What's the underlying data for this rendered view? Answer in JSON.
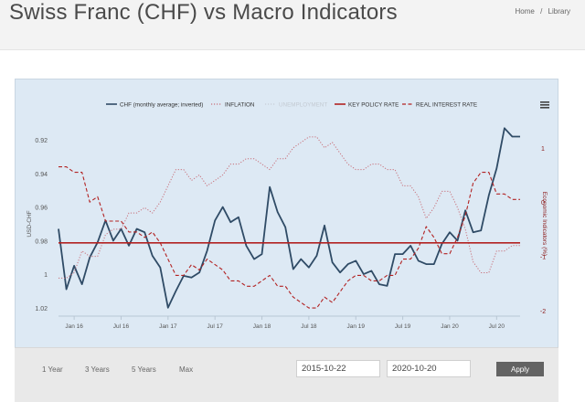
{
  "page": {
    "title": "Swiss Franc (CHF) vs Macro Indicators"
  },
  "breadcrumb": {
    "home": "Home",
    "separator": "/",
    "current": "Library"
  },
  "controls": {
    "periods": [
      "1 Year",
      "3 Years",
      "5 Years",
      "Max"
    ],
    "start_date": "2015-10-22",
    "end_date": "2020-10-20",
    "apply_label": "Apply"
  },
  "chart_data": {
    "type": "line",
    "title": "",
    "xlabel": "",
    "ylabel": "USD-CHF",
    "y2label": "Economic Indicators (%)",
    "x_ticks": [
      "Jan 16",
      "Jul 16",
      "Jan 17",
      "Jul 17",
      "Jan 18",
      "Jul 18",
      "Jan 19",
      "Jul 19",
      "Jan 20",
      "Jul 20"
    ],
    "y_ticks": [
      "0.92",
      "0.94",
      "0.96",
      "0.98",
      "1",
      "1.02"
    ],
    "y2_ticks": [
      "1",
      "0",
      "-1",
      "-2"
    ],
    "ylim": [
      0.915,
      1.025
    ],
    "y_inverted": true,
    "y2lim": [
      -2.1,
      1.3
    ],
    "x_range": [
      "2015-11",
      "2020-10"
    ],
    "legend_position": "top",
    "legend": [
      "CHF (monthly average; inverted)",
      "INFLATION",
      "UNEMPLOYMENT",
      "KEY POLICY RATE",
      "REAL INTEREST RATE"
    ],
    "menu_icon": "hamburger-menu-icon",
    "series": [
      {
        "name": "CHF (monthly average; inverted)",
        "axis": "left",
        "color": "#2f4b66",
        "style": "solid",
        "points": [
          [
            "2015-11",
            0.973
          ],
          [
            "2015-12",
            1.009
          ],
          [
            "2016-01",
            0.995
          ],
          [
            "2016-02",
            1.006
          ],
          [
            "2016-03",
            0.99
          ],
          [
            "2016-04",
            0.981
          ],
          [
            "2016-05",
            0.968
          ],
          [
            "2016-06",
            0.98
          ],
          [
            "2016-07",
            0.973
          ],
          [
            "2016-08",
            0.983
          ],
          [
            "2016-09",
            0.973
          ],
          [
            "2016-10",
            0.975
          ],
          [
            "2016-11",
            0.989
          ],
          [
            "2016-12",
            0.996
          ],
          [
            "2017-01",
            1.02
          ],
          [
            "2017-02",
            1.01
          ],
          [
            "2017-03",
            1.001
          ],
          [
            "2017-04",
            1.002
          ],
          [
            "2017-05",
            0.999
          ],
          [
            "2017-06",
            0.986
          ],
          [
            "2017-07",
            0.968
          ],
          [
            "2017-08",
            0.96
          ],
          [
            "2017-09",
            0.969
          ],
          [
            "2017-10",
            0.966
          ],
          [
            "2017-11",
            0.983
          ],
          [
            "2017-12",
            0.991
          ],
          [
            "2018-01",
            0.988
          ],
          [
            "2018-02",
            0.948
          ],
          [
            "2018-03",
            0.963
          ],
          [
            "2018-04",
            0.972
          ],
          [
            "2018-05",
            0.997
          ],
          [
            "2018-06",
            0.991
          ],
          [
            "2018-07",
            0.996
          ],
          [
            "2018-08",
            0.989
          ],
          [
            "2018-09",
            0.971
          ],
          [
            "2018-10",
            0.993
          ],
          [
            "2018-11",
            0.999
          ],
          [
            "2018-12",
            0.994
          ],
          [
            "2019-01",
            0.992
          ],
          [
            "2019-02",
            1.0
          ],
          [
            "2019-03",
            0.998
          ],
          [
            "2019-04",
            1.006
          ],
          [
            "2019-05",
            1.007
          ],
          [
            "2019-06",
            0.988
          ],
          [
            "2019-07",
            0.988
          ],
          [
            "2019-08",
            0.983
          ],
          [
            "2019-09",
            0.992
          ],
          [
            "2019-10",
            0.994
          ],
          [
            "2019-11",
            0.994
          ],
          [
            "2019-12",
            0.982
          ],
          [
            "2020-01",
            0.975
          ],
          [
            "2020-02",
            0.98
          ],
          [
            "2020-03",
            0.962
          ],
          [
            "2020-04",
            0.975
          ],
          [
            "2020-05",
            0.974
          ],
          [
            "2020-06",
            0.953
          ],
          [
            "2020-07",
            0.937
          ],
          [
            "2020-08",
            0.913
          ],
          [
            "2020-09",
            0.918
          ],
          [
            "2020-10",
            0.918
          ]
        ]
      },
      {
        "name": "INFLATION",
        "axis": "right",
        "color": "#c8707a",
        "style": "dotted",
        "points": [
          [
            "2015-11",
            -1.4
          ],
          [
            "2015-12",
            -1.4
          ],
          [
            "2016-01",
            -1.3
          ],
          [
            "2016-02",
            -0.9
          ],
          [
            "2016-03",
            -1.0
          ],
          [
            "2016-04",
            -1.0
          ],
          [
            "2016-05",
            -0.6
          ],
          [
            "2016-06",
            -0.5
          ],
          [
            "2016-07",
            -0.5
          ],
          [
            "2016-08",
            -0.2
          ],
          [
            "2016-09",
            -0.2
          ],
          [
            "2016-10",
            -0.1
          ],
          [
            "2016-11",
            -0.2
          ],
          [
            "2016-12",
            0.0
          ],
          [
            "2017-01",
            0.3
          ],
          [
            "2017-02",
            0.6
          ],
          [
            "2017-03",
            0.6
          ],
          [
            "2017-04",
            0.4
          ],
          [
            "2017-05",
            0.5
          ],
          [
            "2017-06",
            0.3
          ],
          [
            "2017-07",
            0.4
          ],
          [
            "2017-08",
            0.5
          ],
          [
            "2017-09",
            0.7
          ],
          [
            "2017-10",
            0.7
          ],
          [
            "2017-11",
            0.8
          ],
          [
            "2017-12",
            0.8
          ],
          [
            "2018-01",
            0.7
          ],
          [
            "2018-02",
            0.6
          ],
          [
            "2018-03",
            0.8
          ],
          [
            "2018-04",
            0.8
          ],
          [
            "2018-05",
            1.0
          ],
          [
            "2018-06",
            1.1
          ],
          [
            "2018-07",
            1.2
          ],
          [
            "2018-08",
            1.2
          ],
          [
            "2018-09",
            1.0
          ],
          [
            "2018-10",
            1.1
          ],
          [
            "2018-11",
            0.9
          ],
          [
            "2018-12",
            0.7
          ],
          [
            "2019-01",
            0.6
          ],
          [
            "2019-02",
            0.6
          ],
          [
            "2019-03",
            0.7
          ],
          [
            "2019-04",
            0.7
          ],
          [
            "2019-05",
            0.6
          ],
          [
            "2019-06",
            0.6
          ],
          [
            "2019-07",
            0.3
          ],
          [
            "2019-08",
            0.3
          ],
          [
            "2019-09",
            0.1
          ],
          [
            "2019-10",
            -0.3
          ],
          [
            "2019-11",
            -0.1
          ],
          [
            "2019-12",
            0.2
          ],
          [
            "2020-01",
            0.2
          ],
          [
            "2020-02",
            -0.1
          ],
          [
            "2020-03",
            -0.5
          ],
          [
            "2020-04",
            -1.1
          ],
          [
            "2020-05",
            -1.3
          ],
          [
            "2020-06",
            -1.3
          ],
          [
            "2020-07",
            -0.9
          ],
          [
            "2020-08",
            -0.9
          ],
          [
            "2020-09",
            -0.8
          ],
          [
            "2020-10",
            -0.8
          ]
        ]
      },
      {
        "name": "UNEMPLOYMENT",
        "axis": "right",
        "color": "#c9cfd6",
        "style": "dotted",
        "hidden": true,
        "points": []
      },
      {
        "name": "KEY POLICY RATE",
        "axis": "right",
        "color": "#b22222",
        "style": "solid",
        "points": [
          [
            "2015-11",
            -0.75
          ],
          [
            "2020-10",
            -0.75
          ]
        ]
      },
      {
        "name": "REAL INTEREST RATE",
        "axis": "right",
        "color": "#b22222",
        "style": "dashed",
        "points": [
          [
            "2015-11",
            0.65
          ],
          [
            "2015-12",
            0.65
          ],
          [
            "2016-01",
            0.55
          ],
          [
            "2016-02",
            0.55
          ],
          [
            "2016-03",
            0.0
          ],
          [
            "2016-04",
            0.1
          ],
          [
            "2016-05",
            -0.35
          ],
          [
            "2016-06",
            -0.35
          ],
          [
            "2016-07",
            -0.35
          ],
          [
            "2016-08",
            -0.55
          ],
          [
            "2016-09",
            -0.55
          ],
          [
            "2016-10",
            -0.65
          ],
          [
            "2016-11",
            -0.55
          ],
          [
            "2016-12",
            -0.75
          ],
          [
            "2017-01",
            -1.05
          ],
          [
            "2017-02",
            -1.35
          ],
          [
            "2017-03",
            -1.35
          ],
          [
            "2017-04",
            -1.15
          ],
          [
            "2017-05",
            -1.25
          ],
          [
            "2017-06",
            -1.05
          ],
          [
            "2017-07",
            -1.15
          ],
          [
            "2017-08",
            -1.25
          ],
          [
            "2017-09",
            -1.45
          ],
          [
            "2017-10",
            -1.45
          ],
          [
            "2017-11",
            -1.55
          ],
          [
            "2017-12",
            -1.55
          ],
          [
            "2018-01",
            -1.45
          ],
          [
            "2018-02",
            -1.35
          ],
          [
            "2018-03",
            -1.55
          ],
          [
            "2018-04",
            -1.55
          ],
          [
            "2018-05",
            -1.75
          ],
          [
            "2018-06",
            -1.85
          ],
          [
            "2018-07",
            -1.95
          ],
          [
            "2018-08",
            -1.95
          ],
          [
            "2018-09",
            -1.75
          ],
          [
            "2018-10",
            -1.85
          ],
          [
            "2018-11",
            -1.65
          ],
          [
            "2018-12",
            -1.45
          ],
          [
            "2019-01",
            -1.35
          ],
          [
            "2019-02",
            -1.35
          ],
          [
            "2019-03",
            -1.45
          ],
          [
            "2019-04",
            -1.45
          ],
          [
            "2019-05",
            -1.35
          ],
          [
            "2019-06",
            -1.35
          ],
          [
            "2019-07",
            -1.05
          ],
          [
            "2019-08",
            -1.05
          ],
          [
            "2019-09",
            -0.85
          ],
          [
            "2019-10",
            -0.45
          ],
          [
            "2019-11",
            -0.65
          ],
          [
            "2019-12",
            -0.95
          ],
          [
            "2020-01",
            -0.95
          ],
          [
            "2020-02",
            -0.65
          ],
          [
            "2020-03",
            -0.25
          ],
          [
            "2020-04",
            0.35
          ],
          [
            "2020-05",
            0.55
          ],
          [
            "2020-06",
            0.55
          ],
          [
            "2020-07",
            0.15
          ],
          [
            "2020-08",
            0.15
          ],
          [
            "2020-09",
            0.05
          ],
          [
            "2020-10",
            0.05
          ]
        ]
      }
    ]
  }
}
